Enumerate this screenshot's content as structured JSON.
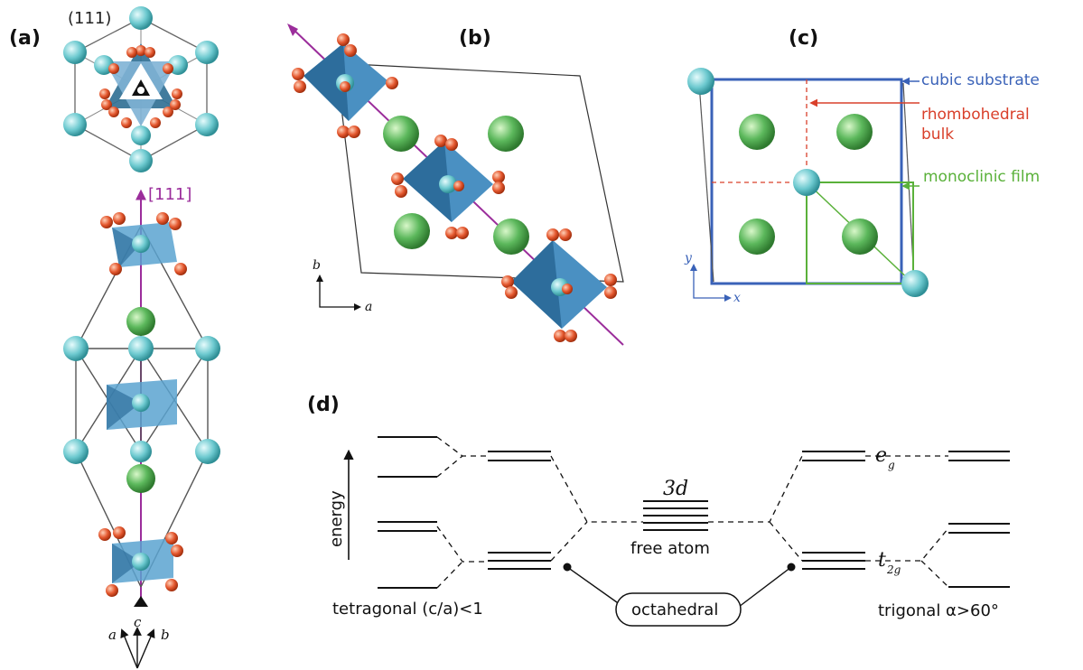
{
  "panels": {
    "a": {
      "label": "(a)",
      "plane_label": "(111)",
      "direction_label": "[111]",
      "axes": {
        "a": "a",
        "c": "c",
        "b": "b"
      }
    },
    "b": {
      "label": "(b)",
      "axes": {
        "b": "b",
        "a": "a"
      }
    },
    "c": {
      "label": "(c)",
      "legend": {
        "cubic": "cubic substrate",
        "rhombo_line1": "rhombohedral",
        "rhombo_line2": "bulk",
        "mono": "monoclinic film"
      },
      "axes": {
        "y": "y",
        "x": "x"
      }
    },
    "d": {
      "label": "(d)",
      "energy_label": "energy",
      "center_label": "3d",
      "free_atom": "free atom",
      "octahedral": "octahedral",
      "eg": "e",
      "eg_sub": "g",
      "t2g": "t",
      "t2g_sub": "2g",
      "left_caption": "tetragonal (c/a)<1",
      "right_caption": "trigonal α>60°"
    }
  },
  "colors": {
    "cation_cyan": "#7fd3d8",
    "a_site_green": "#5cb85c",
    "oxygen_red": "#e4572e",
    "octa_blue": "#4a90c2",
    "direction_purple": "#9b2d9b",
    "cubic_blue": "#3a62b8",
    "rhombo_red": "#d9402b",
    "mono_green": "#5ab13a"
  }
}
